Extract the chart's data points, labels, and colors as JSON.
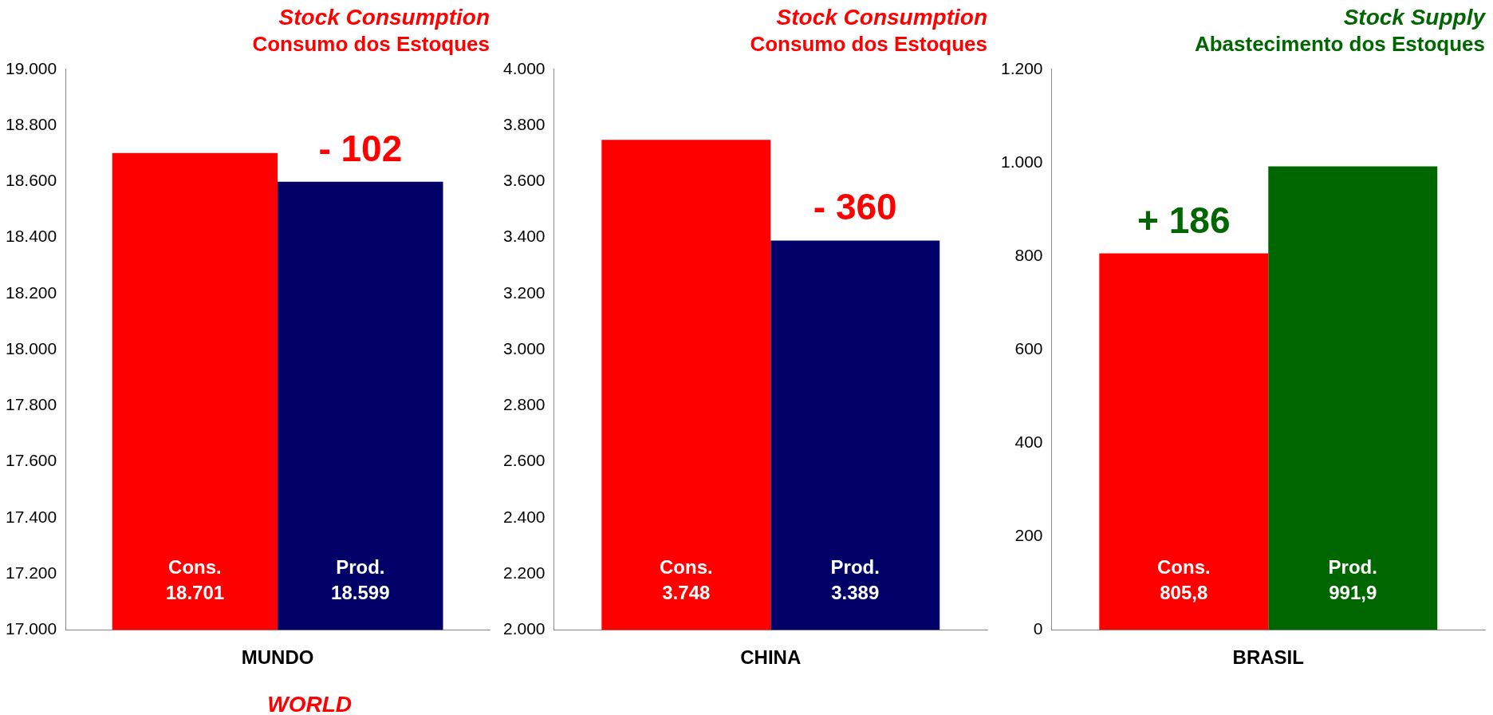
{
  "chart_data": [
    {
      "type": "bar",
      "title": "Stock Consumption",
      "subtitle": "Consumo dos Estoques",
      "xlabel": "WORLD",
      "categories": [
        "MUNDO"
      ],
      "series": [
        {
          "name": "Cons.",
          "color": "#ff0000",
          "values": [
            18701
          ],
          "value_labels": [
            "18.701"
          ]
        },
        {
          "name": "Prod.",
          "color": "#000066",
          "values": [
            18599
          ],
          "value_labels": [
            "18.599"
          ]
        }
      ],
      "ylim": [
        17000,
        19000
      ],
      "yticks": [
        {
          "value": 17000,
          "label": "17.000"
        },
        {
          "value": 17200,
          "label": "17.200"
        },
        {
          "value": 17400,
          "label": "17.400"
        },
        {
          "value": 17600,
          "label": "17.600"
        },
        {
          "value": 17800,
          "label": "17.800"
        },
        {
          "value": 18000,
          "label": "18.000"
        },
        {
          "value": 18200,
          "label": "18.200"
        },
        {
          "value": 18400,
          "label": "18.400"
        },
        {
          "value": 18600,
          "label": "18.600"
        },
        {
          "value": 18800,
          "label": "18.800"
        },
        {
          "value": 19000,
          "label": "19.000"
        }
      ],
      "annotations": [
        {
          "text": "- 102",
          "x": "MUNDO",
          "y": 18599
        }
      ],
      "legend": false,
      "grid": false
    },
    {
      "type": "bar",
      "title": "Stock Consumption",
      "subtitle": "Consumo dos Estoques",
      "categories": [
        "CHINA"
      ],
      "series": [
        {
          "name": "Cons.",
          "color": "#ff0000",
          "values": [
            3748
          ],
          "value_labels": [
            "3.748"
          ]
        },
        {
          "name": "Prod.",
          "color": "#000066",
          "values": [
            3389
          ],
          "value_labels": [
            "3.389"
          ]
        }
      ],
      "ylim": [
        2000,
        4000
      ],
      "yticks": [
        {
          "value": 2000,
          "label": "2.000"
        },
        {
          "value": 2200,
          "label": "2.200"
        },
        {
          "value": 2400,
          "label": "2.400"
        },
        {
          "value": 2600,
          "label": "2.600"
        },
        {
          "value": 2800,
          "label": "2.800"
        },
        {
          "value": 3000,
          "label": "3.000"
        },
        {
          "value": 3200,
          "label": "3.200"
        },
        {
          "value": 3400,
          "label": "3.400"
        },
        {
          "value": 3600,
          "label": "3.600"
        },
        {
          "value": 3800,
          "label": "3.800"
        },
        {
          "value": 4000,
          "label": "4.000"
        }
      ],
      "annotations": [
        {
          "text": "- 360",
          "x": "CHINA",
          "y": 3389
        }
      ],
      "legend": false,
      "grid": false
    },
    {
      "type": "bar",
      "title": "Stock Supply",
      "subtitle": "Abastecimento dos Estoques",
      "categories": [
        "BRASIL"
      ],
      "series": [
        {
          "name": "Cons.",
          "color": "#ff0000",
          "values": [
            805.8
          ],
          "value_labels": [
            "805,8"
          ]
        },
        {
          "name": "Prod.",
          "color": "#006600",
          "values": [
            991.9
          ],
          "value_labels": [
            "991,9"
          ]
        }
      ],
      "ylim": [
        0,
        1200
      ],
      "yticks": [
        0,
        200,
        400,
        600,
        800,
        {
          "value": 1000,
          "label": "1.000"
        },
        {
          "value": 1200,
          "label": "1.200"
        }
      ],
      "annotations": [
        {
          "text": "+ 186",
          "x": "BRASIL",
          "y": 805.8
        }
      ],
      "legend": false,
      "grid": false
    }
  ]
}
